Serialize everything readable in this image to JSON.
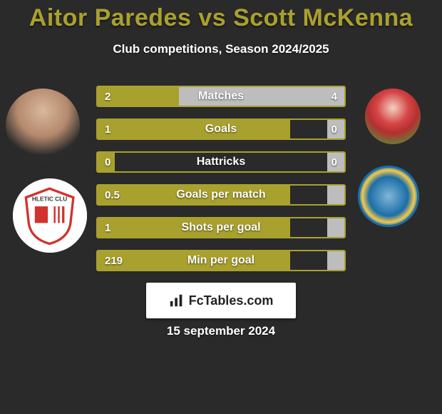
{
  "title": "Aitor Paredes vs Scott McKenna",
  "title_color": "#a9a12e",
  "subtitle": "Club competitions, Season 2024/2025",
  "background_color": "#2a2a2a",
  "text_color": "#ffffff",
  "stats": {
    "bar_border_color": "#a9a12e",
    "left_fill_color": "#a9a12e",
    "right_fill_color": "#bdbdbd",
    "rows": [
      {
        "label": "Matches",
        "left_display": "2",
        "right_display": "4",
        "left_pct": 33,
        "right_pct": 67
      },
      {
        "label": "Goals",
        "left_display": "1",
        "right_display": "0",
        "left_pct": 78,
        "right_pct": 7
      },
      {
        "label": "Hattricks",
        "left_display": "0",
        "right_display": "0",
        "left_pct": 7,
        "right_pct": 7
      },
      {
        "label": "Goals per match",
        "left_display": "0.5",
        "right_display": "",
        "left_pct": 78,
        "right_pct": 7
      },
      {
        "label": "Shots per goal",
        "left_display": "1",
        "right_display": "",
        "left_pct": 78,
        "right_pct": 7
      },
      {
        "label": "Min per goal",
        "left_display": "219",
        "right_display": "",
        "left_pct": 78,
        "right_pct": 7
      }
    ]
  },
  "footer_brand": "FcTables.com",
  "footer_date": "15 september 2024"
}
